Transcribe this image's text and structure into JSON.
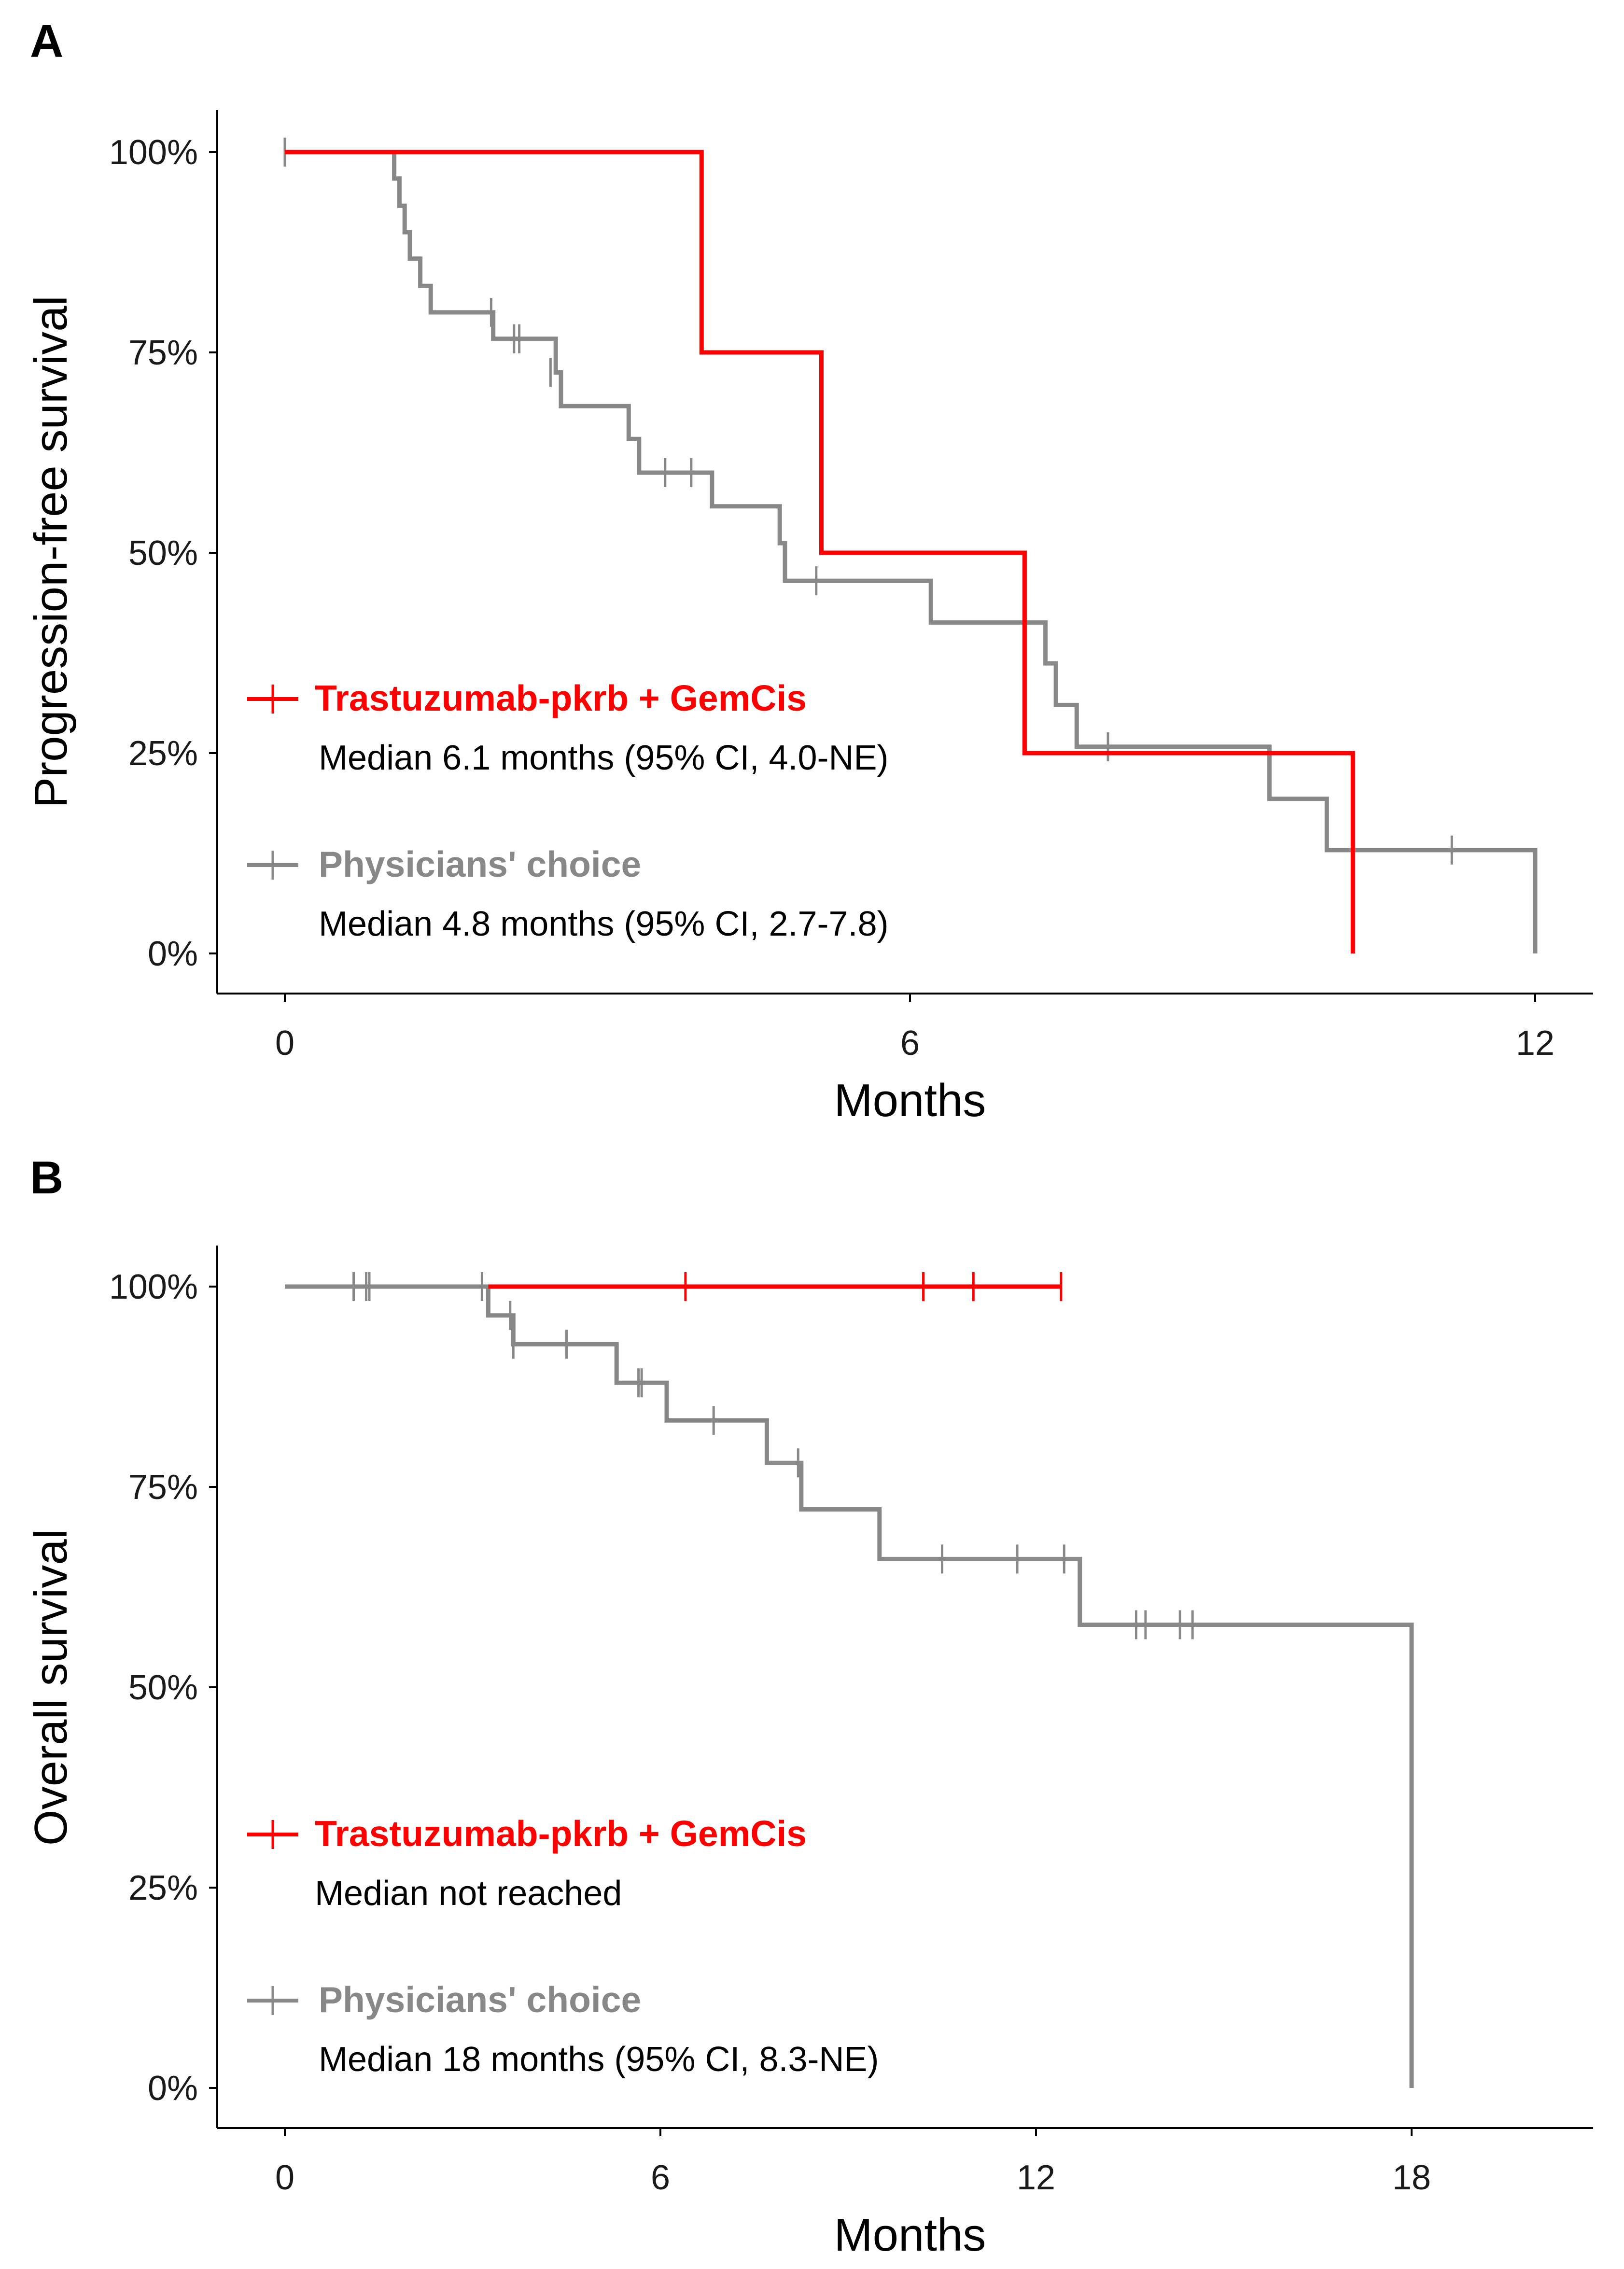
{
  "colors": {
    "treatment": "#ff0000",
    "control": "#888888",
    "axis": "#000000"
  },
  "chart_data": [
    {
      "type": "line",
      "subtype": "kaplan-meier",
      "panel": "A",
      "xlabel": "Months",
      "ylabel": "Progression-free survival",
      "xlim": [
        -1.1,
        12.7
      ],
      "ylim": [
        -0.05,
        1.05
      ],
      "xticks": [
        0,
        6,
        12
      ],
      "xtick_labels": [
        "0",
        "6",
        "12"
      ],
      "yticks": [
        0,
        0.25,
        0.5,
        0.75,
        1.0
      ],
      "ytick_labels": [
        "0%",
        "25%",
        "50%",
        "75%",
        "100%"
      ],
      "series": [
        {
          "name": "Trastuzumab-pkrb + GemCis",
          "color": "#ff0000",
          "median_text": "Median 6.1 months (95% CI, 4.0-NE)",
          "steps": [
            [
              0,
              1.0
            ],
            [
              4.0,
              0.75
            ],
            [
              5.15,
              0.5
            ],
            [
              7.1,
              0.25
            ],
            [
              10.25,
              0.0
            ]
          ],
          "end_x": 10.25,
          "censors": []
        },
        {
          "name": "Physicians' choice",
          "color": "#888888",
          "median_text": "Median 4.8 months (95% CI, 2.7-7.8)",
          "steps": [
            [
              0,
              1.0
            ],
            [
              1.05,
              0.967
            ],
            [
              1.1,
              0.933
            ],
            [
              1.15,
              0.9
            ],
            [
              1.2,
              0.867
            ],
            [
              1.3,
              0.833
            ],
            [
              1.4,
              0.8
            ],
            [
              2.0,
              0.767
            ],
            [
              2.6,
              0.725
            ],
            [
              2.65,
              0.683
            ],
            [
              3.3,
              0.642
            ],
            [
              3.4,
              0.6
            ],
            [
              4.1,
              0.558
            ],
            [
              4.75,
              0.512
            ],
            [
              4.8,
              0.465
            ],
            [
              6.2,
              0.413
            ],
            [
              7.3,
              0.362
            ],
            [
              7.4,
              0.31
            ],
            [
              7.6,
              0.258
            ],
            [
              9.45,
              0.193
            ],
            [
              10.0,
              0.129
            ],
            [
              12.0,
              0.0
            ]
          ],
          "end_x": 12.0,
          "censors": [
            [
              0.0,
              1.0
            ],
            [
              1.98,
              0.8
            ],
            [
              2.2,
              0.767
            ],
            [
              2.25,
              0.767
            ],
            [
              2.55,
              0.725
            ],
            [
              3.65,
              0.6
            ],
            [
              3.9,
              0.6
            ],
            [
              5.1,
              0.465
            ],
            [
              7.9,
              0.258
            ],
            [
              11.2,
              0.129
            ]
          ]
        }
      ]
    },
    {
      "type": "line",
      "subtype": "kaplan-meier",
      "panel": "B",
      "xlabel": "Months",
      "ylabel": "Overall survival",
      "xlim": [
        -1.6,
        20.0
      ],
      "ylim": [
        -0.05,
        1.05
      ],
      "xticks": [
        0,
        6,
        12,
        18
      ],
      "xtick_labels": [
        "0",
        "6",
        "12",
        "18"
      ],
      "yticks": [
        0,
        0.25,
        0.5,
        0.75,
        1.0
      ],
      "ytick_labels": [
        "0%",
        "25%",
        "50%",
        "75%",
        "100%"
      ],
      "series": [
        {
          "name": "Trastuzumab-pkrb + GemCis",
          "color": "#ff0000",
          "median_text": "Median not reached",
          "steps": [
            [
              0,
              1.0
            ]
          ],
          "start_x": 3.25,
          "end_x": 12.4,
          "censors": [
            [
              6.4,
              1.0
            ],
            [
              10.2,
              1.0
            ],
            [
              11.0,
              1.0
            ],
            [
              12.4,
              1.0
            ]
          ]
        },
        {
          "name": "Physicians' choice",
          "color": "#888888",
          "median_text": "Median 18 months (95% CI, 8.3-NE)",
          "steps": [
            [
              0,
              1.0
            ],
            [
              3.25,
              0.964
            ],
            [
              3.65,
              0.928
            ],
            [
              5.3,
              0.88
            ],
            [
              6.1,
              0.833
            ],
            [
              7.7,
              0.78
            ],
            [
              8.25,
              0.722
            ],
            [
              9.5,
              0.66
            ],
            [
              12.7,
              0.578
            ],
            [
              18.0,
              0.0
            ]
          ],
          "end_x": 18.0,
          "censors": [
            [
              1.1,
              1.0
            ],
            [
              1.3,
              1.0
            ],
            [
              1.35,
              1.0
            ],
            [
              3.15,
              1.0
            ],
            [
              3.6,
              0.964
            ],
            [
              3.65,
              0.928
            ],
            [
              4.5,
              0.928
            ],
            [
              5.65,
              0.88
            ],
            [
              5.7,
              0.88
            ],
            [
              6.85,
              0.833
            ],
            [
              8.2,
              0.78
            ],
            [
              10.5,
              0.66
            ],
            [
              11.7,
              0.66
            ],
            [
              12.45,
              0.66
            ],
            [
              13.6,
              0.578
            ],
            [
              13.75,
              0.578
            ],
            [
              14.3,
              0.578
            ],
            [
              14.5,
              0.578
            ]
          ]
        }
      ]
    }
  ]
}
